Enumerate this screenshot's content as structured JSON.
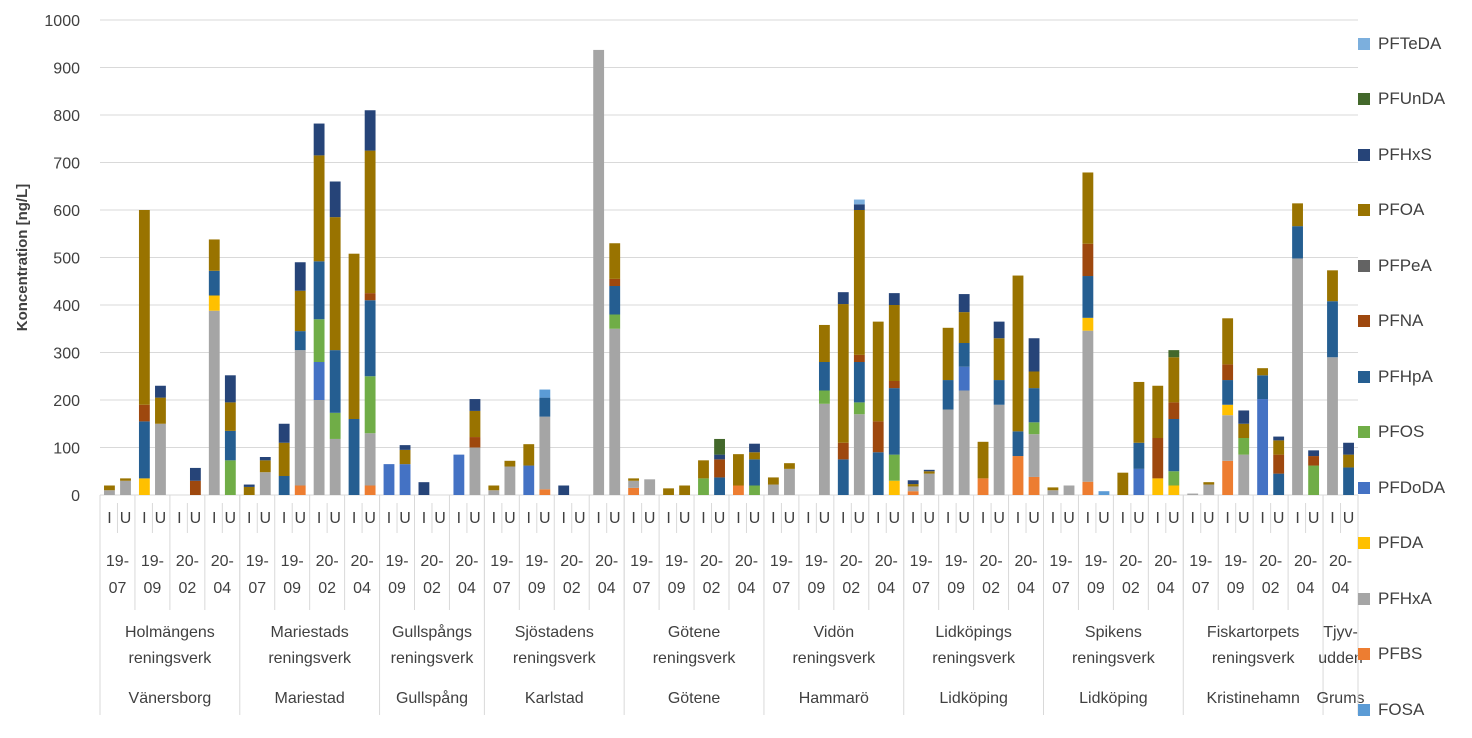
{
  "chart_data": {
    "type": "bar",
    "stacked": true,
    "ylabel": "Koncentration [ng/L]",
    "ylim": [
      0,
      1000
    ],
    "yticks": [
      0,
      100,
      200,
      300,
      400,
      500,
      600,
      700,
      800,
      900,
      1000
    ],
    "grid": true,
    "legend_position": "right",
    "legend_order": [
      "PFTeDA",
      "PFUnDA",
      "PFHxS",
      "PFOA",
      "PFPeA",
      "PFNA",
      "PFHpA",
      "PFOS",
      "PFDoDA",
      "PFDA",
      "PFHxA",
      "PFBS",
      "FOSA"
    ],
    "series": [
      {
        "name": "PFBS",
        "color": "#ED7D31"
      },
      {
        "name": "PFHxA",
        "color": "#A5A5A5"
      },
      {
        "name": "PFDA",
        "color": "#FFC000"
      },
      {
        "name": "PFDoDA",
        "color": "#4472C4"
      },
      {
        "name": "PFOS",
        "color": "#70AD47"
      },
      {
        "name": "PFHpA",
        "color": "#255E91"
      },
      {
        "name": "PFNA",
        "color": "#9E480E"
      },
      {
        "name": "PFPeA",
        "color": "#636363"
      },
      {
        "name": "PFOA",
        "color": "#997300"
      },
      {
        "name": "PFHxS",
        "color": "#264478"
      },
      {
        "name": "PFUnDA",
        "color": "#43682B"
      },
      {
        "name": "PFTeDA",
        "color": "#7CAFDD"
      },
      {
        "name": "FOSA",
        "color": "#5B9BD5"
      }
    ],
    "groups": [
      {
        "kommun": "Vänersborg",
        "verk": [
          "Holmängens",
          "reningsverk"
        ],
        "dates": [
          {
            "d": [
              "19-",
              "07"
            ],
            "bars": [
              {
                "HxA": 10,
                "OA": 10
              },
              {
                "HxA": 30,
                "OA": 5
              }
            ]
          },
          {
            "d": [
              "19-",
              "09"
            ],
            "bars": [
              {
                "DA": 35,
                "HpA": 120,
                "NA": 35,
                "OA": 410
              },
              {
                "HxA": 150,
                "OA": 55,
                "HxS": 25
              }
            ]
          },
          {
            "d": [
              "20-",
              "02"
            ],
            "bars": [
              {},
              {
                "NA": 30,
                "HxS": 27
              }
            ]
          },
          {
            "d": [
              "20-",
              "04"
            ],
            "bars": [
              {
                "HxA": 388,
                "DA": 32,
                "HpA": 52,
                "OA": 66
              },
              {
                "OS": 73,
                "HpA": 62,
                "OA": 60,
                "HxS": 57
              }
            ]
          }
        ]
      },
      {
        "kommun": "Mariestad",
        "verk": [
          "Mariestads",
          "reningsverk"
        ],
        "dates": [
          {
            "d": [
              "19-",
              "07"
            ],
            "bars": [
              {
                "OA": 17,
                "HxS": 5
              },
              {
                "HxA": 48,
                "OA": 25,
                "HxS": 7
              }
            ]
          },
          {
            "d": [
              "19-",
              "09"
            ],
            "bars": [
              {
                "HpA": 40,
                "OA": 70,
                "HxS": 40
              },
              {
                "BS": 20,
                "HxA": 285,
                "HpA": 40,
                "OA": 85,
                "HxS": 60
              }
            ]
          },
          {
            "d": [
              "20-",
              "02"
            ],
            "bars": [
              {
                "HxA": 200,
                "DoDA": 80,
                "OS": 90,
                "HpA": 122,
                "OA": 223,
                "HxS": 67
              },
              {
                "HxA": 118,
                "OS": 55,
                "HpA": 132,
                "OA": 280,
                "HxS": 75
              }
            ]
          },
          {
            "d": [
              "20-",
              "04"
            ],
            "bars": [
              {
                "HpA": 160,
                "OA": 348
              },
              {
                "BS": 20,
                "HxA": 110,
                "OS": 120,
                "HpA": 160,
                "NA": 15,
                "OA": 300,
                "HxS": 85
              }
            ]
          }
        ]
      },
      {
        "kommun": "Gullspång",
        "verk": [
          "Gullspångs",
          "reningsverk"
        ],
        "dates": [
          {
            "d": [
              "19-",
              "09"
            ],
            "bars": [
              {
                "DoDA": 65
              },
              {
                "DoDA": 65,
                "OA": 30,
                "HxS": 10
              }
            ]
          },
          {
            "d": [
              "20-",
              "02"
            ],
            "bars": [
              {
                "HxS": 27
              },
              {}
            ]
          },
          {
            "d": [
              "20-",
              "04"
            ],
            "bars": [
              {
                "DoDA": 85
              },
              {
                "HxA": 100,
                "NA": 22,
                "OA": 55,
                "HxS": 25
              }
            ]
          }
        ]
      },
      {
        "kommun": "Karlstad",
        "verk": [
          "Sjöstadens",
          "reningsverk"
        ],
        "dates": [
          {
            "d": [
              "19-",
              "07"
            ],
            "bars": [
              {
                "HxA": 10,
                "OA": 10
              },
              {
                "HxA": 60,
                "OA": 12
              }
            ]
          },
          {
            "d": [
              "19-",
              "09"
            ],
            "bars": [
              {
                "DoDA": 62,
                "OA": 45
              },
              {
                "BS": 12,
                "HxA": 153,
                "HpA": 40,
                "FOSA": 17
              }
            ]
          },
          {
            "d": [
              "20-",
              "02"
            ],
            "bars": [
              {
                "HxS": 20
              },
              {}
            ]
          },
          {
            "d": [
              "20-",
              "04"
            ],
            "bars": [
              {
                "HxA": 937
              },
              {
                "HxA": 350,
                "OS": 30,
                "HpA": 60,
                "NA": 15,
                "OA": 75
              }
            ]
          }
        ]
      },
      {
        "kommun": "Götene",
        "verk": [
          "Götene",
          "reningsverk"
        ],
        "dates": [
          {
            "d": [
              "19-",
              "07"
            ],
            "bars": [
              {
                "BS": 15,
                "HxA": 15,
                "OA": 5
              },
              {
                "HxA": 33
              }
            ]
          },
          {
            "d": [
              "19-",
              "09"
            ],
            "bars": [
              {
                "OA": 14
              },
              {
                "OA": 20
              }
            ]
          },
          {
            "d": [
              "20-",
              "02"
            ],
            "bars": [
              {
                "OS": 35,
                "OA": 38
              },
              {
                "HpA": 37,
                "NA": 38,
                "HxS": 10,
                "UnDA": 33
              }
            ]
          },
          {
            "d": [
              "20-",
              "04"
            ],
            "bars": [
              {
                "BS": 20,
                "OA": 66
              },
              {
                "OS": 20,
                "HpA": 55,
                "OA": 15,
                "HxS": 18
              }
            ]
          }
        ]
      },
      {
        "kommun": "Hammarö",
        "verk": [
          "Vidön",
          "reningsverk"
        ],
        "dates": [
          {
            "d": [
              "19-",
              "07"
            ],
            "bars": [
              {
                "HxA": 22,
                "OA": 15
              },
              {
                "HxA": 55,
                "OA": 12
              }
            ]
          },
          {
            "d": [
              "19-",
              "09"
            ],
            "bars": [
              {},
              {
                "HxA": 192,
                "OS": 28,
                "HpA": 60,
                "OA": 78
              }
            ]
          },
          {
            "d": [
              "20-",
              "02"
            ],
            "bars": [
              {
                "HpA": 75,
                "NA": 35,
                "OA": 292,
                "HxS": 25
              },
              {
                "HxA": 170,
                "OS": 25,
                "HpA": 85,
                "NA": 15,
                "OA": 305,
                "HxS": 12,
                "TeDA": 10
              }
            ]
          },
          {
            "d": [
              "20-",
              "04"
            ],
            "bars": [
              {
                "HpA": 90,
                "NA": 65,
                "OA": 210
              },
              {
                "DA": 30,
                "OS": 55,
                "HpA": 140,
                "NA": 15,
                "OA": 160,
                "HxS": 25
              }
            ]
          }
        ]
      },
      {
        "kommun": "Lidköping",
        "verk": [
          "Lidköpings",
          "reningsverk"
        ],
        "dates": [
          {
            "d": [
              "19-",
              "07"
            ],
            "bars": [
              {
                "BS": 8,
                "HxA": 10,
                "OA": 5,
                "HxS": 8
              },
              {
                "HxA": 45,
                "OA": 5,
                "HxS": 3
              }
            ]
          },
          {
            "d": [
              "19-",
              "09"
            ],
            "bars": [
              {
                "HxA": 180,
                "HpA": 62,
                "OA": 110
              },
              {
                "HxA": 220,
                "DoDA": 50,
                "HpA": 50,
                "OA": 65,
                "HxS": 38
              }
            ]
          },
          {
            "d": [
              "20-",
              "02"
            ],
            "bars": [
              {
                "BS": 35,
                "OA": 77
              },
              {
                "HxA": 190,
                "HpA": 52,
                "OA": 88,
                "HxS": 35
              }
            ]
          },
          {
            "d": [
              "20-",
              "04"
            ],
            "bars": [
              {
                "BS": 82,
                "HpA": 52,
                "OA": 328
              },
              {
                "BS": 38,
                "HxA": 90,
                "OS": 25,
                "HpA": 72,
                "OA": 35,
                "HxS": 70
              }
            ]
          }
        ]
      },
      {
        "kommun": "Lidköping",
        "verk": [
          "Spikens",
          "reningsverk"
        ],
        "dates": [
          {
            "d": [
              "19-",
              "07"
            ],
            "bars": [
              {
                "HxA": 10,
                "OA": 6
              },
              {
                "HxA": 20
              }
            ]
          },
          {
            "d": [
              "19-",
              "09"
            ],
            "bars": [
              {
                "BS": 28,
                "HxA": 318,
                "DA": 27,
                "HpA": 88,
                "NA": 68,
                "OA": 150
              },
              {
                "FOSA": 8
              }
            ]
          },
          {
            "d": [
              "20-",
              "02"
            ],
            "bars": [
              {
                "OA": 47
              },
              {
                "DoDA": 55,
                "HpA": 55,
                "OA": 128
              }
            ]
          },
          {
            "d": [
              "20-",
              "04"
            ],
            "bars": [
              {
                "DA": 35,
                "NA": 85,
                "OA": 110
              },
              {
                "DA": 20,
                "OS": 30,
                "HpA": 110,
                "NA": 35,
                "OA": 95,
                "UnDA": 15
              }
            ]
          }
        ]
      },
      {
        "kommun": "Kristinehamn",
        "verk": [
          "Fiskartorpets",
          "reningsverk"
        ],
        "dates": [
          {
            "d": [
              "19-",
              "07"
            ],
            "bars": [
              {
                "HxA": 3
              },
              {
                "HxA": 22,
                "OA": 5
              }
            ]
          },
          {
            "d": [
              "19-",
              "09"
            ],
            "bars": [
              {
                "BS": 72,
                "HxA": 96,
                "DA": 22,
                "HpA": 52,
                "NA": 33,
                "OA": 97
              },
              {
                "HxA": 85,
                "OS": 35,
                "OA": 30,
                "HxS": 28
              }
            ]
          },
          {
            "d": [
              "20-",
              "02"
            ],
            "bars": [
              {
                "DoDA": 202,
                "HpA": 50,
                "OA": 15
              },
              {
                "HpA": 45,
                "NA": 40,
                "OA": 30,
                "HxS": 8
              }
            ]
          },
          {
            "d": [
              "20-",
              "04"
            ],
            "bars": [
              {
                "HxA": 498,
                "HpA": 68,
                "OA": 48
              },
              {
                "OS": 62,
                "NA": 20,
                "HxS": 12
              }
            ]
          }
        ]
      },
      {
        "kommun": "Grums",
        "verk": [
          "Tjyv-",
          "udden"
        ],
        "dates": [
          {
            "d": [
              "20-",
              "04"
            ],
            "bars": [
              {
                "HxA": 290,
                "HpA": 118,
                "OA": 65
              },
              {
                "HpA": 58,
                "OA": 27,
                "HxS": 25
              }
            ]
          }
        ]
      }
    ],
    "subcategory_labels": [
      "I",
      "U"
    ]
  }
}
